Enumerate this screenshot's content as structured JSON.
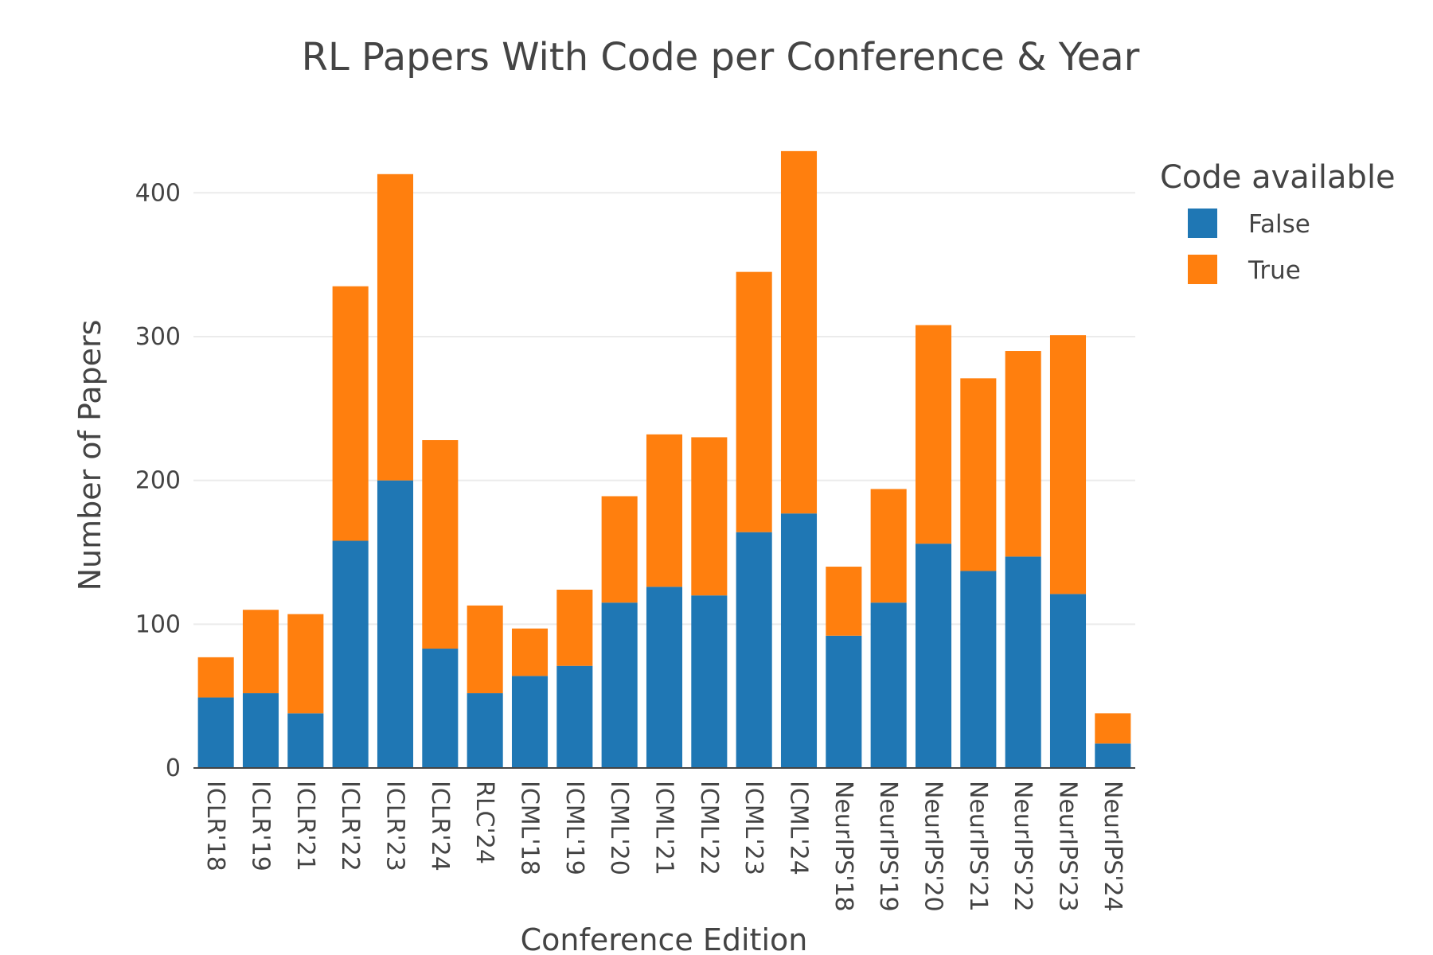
{
  "chart_data": {
    "type": "bar",
    "barmode": "stack",
    "title": "RL Papers With Code per Conference & Year",
    "xlabel": "Conference Edition",
    "ylabel": "Number of Papers",
    "ylim": [
      0,
      440
    ],
    "yticks": [
      0,
      100,
      200,
      300,
      400
    ],
    "grid": true,
    "legend_title": "Code available",
    "legend_position": "top-right",
    "categories": [
      "ICLR'18",
      "ICLR'19",
      "ICLR'21",
      "ICLR'22",
      "ICLR'23",
      "ICLR'24",
      "RLC'24",
      "ICML'18",
      "ICML'19",
      "ICML'20",
      "ICML'21",
      "ICML'22",
      "ICML'23",
      "ICML'24",
      "NeurIPS'18",
      "NeurIPS'19",
      "NeurIPS'20",
      "NeurIPS'21",
      "NeurIPS'22",
      "NeurIPS'23",
      "NeurIPS'24"
    ],
    "series": [
      {
        "name": "False",
        "color": "#1f77b4",
        "values": [
          49,
          52,
          38,
          158,
          200,
          83,
          52,
          64,
          71,
          115,
          126,
          120,
          164,
          177,
          92,
          115,
          156,
          137,
          147,
          121,
          17
        ]
      },
      {
        "name": "True",
        "color": "#ff7f0e",
        "values": [
          28,
          58,
          69,
          177,
          213,
          145,
          61,
          33,
          53,
          74,
          106,
          110,
          181,
          252,
          48,
          79,
          152,
          134,
          143,
          180,
          21
        ]
      }
    ]
  }
}
